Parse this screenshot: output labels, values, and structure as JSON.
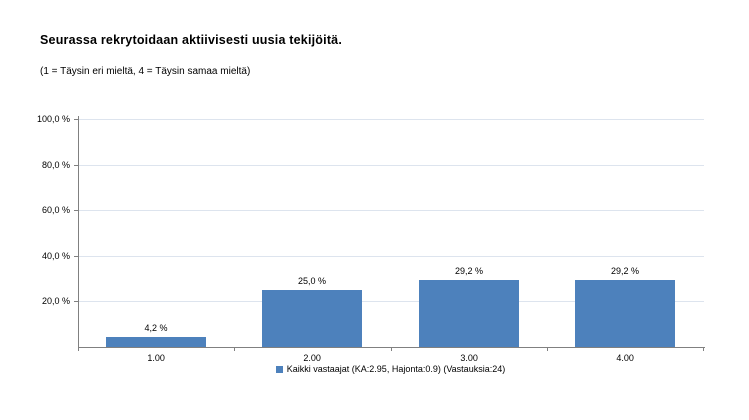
{
  "chart_data": {
    "type": "bar",
    "title": "Seurassa rekrytoidaan aktiivisesti uusia tekijöitä.",
    "subtitle": "(1 = Täysin eri mieltä, 4 = Täysin samaa mieltä)",
    "categories": [
      "1.00",
      "2.00",
      "3.00",
      "4.00"
    ],
    "series": [
      {
        "name": "Kaikki vastaajat (KA:2.95, Hajonta:0.9) (Vastauksia:24)",
        "values": [
          4.2,
          25.0,
          29.2,
          29.2
        ]
      }
    ],
    "value_labels": [
      "4,2 %",
      "25,0 %",
      "29,2 %",
      "29,2 %"
    ],
    "yticks": [
      {
        "value": 100,
        "label": "100,0 %"
      },
      {
        "value": 80,
        "label": "80,0 %"
      },
      {
        "value": 60,
        "label": "60,0 %"
      },
      {
        "value": 40,
        "label": "40,0 %"
      },
      {
        "value": 20,
        "label": "20,0 %"
      }
    ],
    "ylim": [
      0,
      100
    ],
    "xlabel": "",
    "ylabel": "",
    "grid": true,
    "legend_position": "bottom",
    "colors": {
      "bar": "#4d81bc",
      "gridline": "#dde4ee",
      "axis": "#808080",
      "text": "#000000"
    }
  }
}
